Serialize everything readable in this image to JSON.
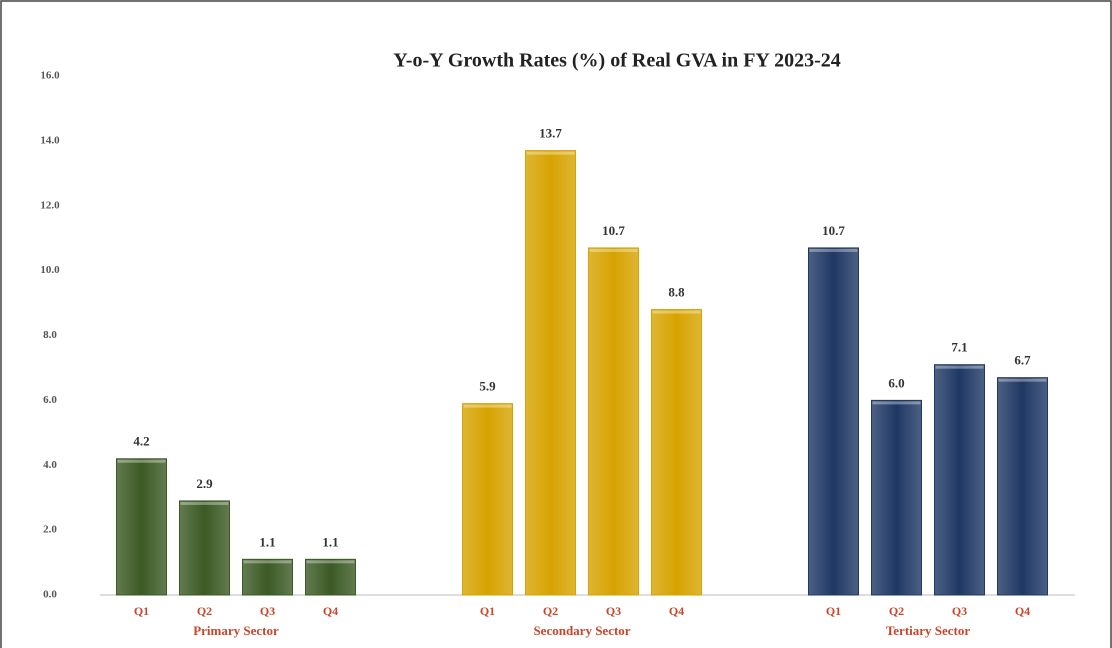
{
  "chart_data": {
    "type": "bar",
    "title": "Y-o-Y Growth Rates (%) of Real GVA in FY 2023-24",
    "categories": [
      "Q1",
      "Q2",
      "Q3",
      "Q4"
    ],
    "series": [
      {
        "name": "Primary Sector",
        "color": "#3b5a24",
        "values": [
          4.2,
          2.9,
          1.1,
          1.1
        ],
        "value_labels": [
          "4.2",
          "2.9",
          "1.1",
          "1.1"
        ]
      },
      {
        "name": "Secondary Sector",
        "color": "#d6a300",
        "values": [
          5.9,
          13.7,
          10.7,
          8.8
        ],
        "value_labels": [
          "5.9",
          "13.7",
          "10.7",
          "8.8"
        ]
      },
      {
        "name": "Tertiary Sector",
        "color": "#1f3864",
        "values": [
          10.7,
          6.0,
          7.1,
          6.7
        ],
        "value_labels": [
          "10.7",
          "6.0",
          "7.1",
          "6.7"
        ]
      }
    ],
    "ylim": [
      0,
      16
    ],
    "yticks": [
      {
        "value": 0,
        "label": "0.0"
      },
      {
        "value": 2,
        "label": "2.0"
      },
      {
        "value": 4,
        "label": "4.0"
      },
      {
        "value": 6,
        "label": "6.0"
      },
      {
        "value": 8,
        "label": "8.0"
      },
      {
        "value": 10,
        "label": "10.0"
      },
      {
        "value": 12,
        "label": "12.0"
      },
      {
        "value": 14,
        "label": "14.0"
      },
      {
        "value": 16,
        "label": "16.0"
      }
    ]
  }
}
